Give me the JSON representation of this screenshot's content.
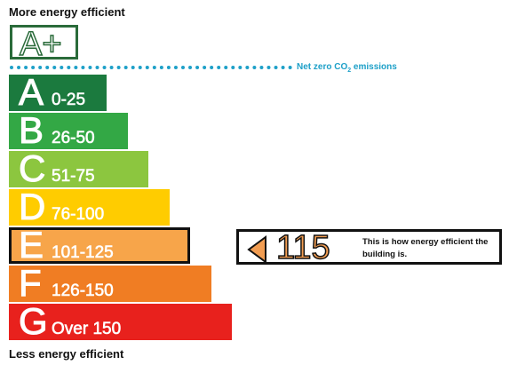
{
  "headings": {
    "top": "More energy efficient",
    "bottom": "Less energy efficient"
  },
  "aplus": {
    "label": "A+"
  },
  "net_zero": {
    "label_main": "Net zero CO",
    "label_sub": "2",
    "label_tail": " emissions",
    "color": "#1ea0c8"
  },
  "bands": [
    {
      "letter": "A",
      "range": "0-25",
      "color": "#1b7a3e"
    },
    {
      "letter": "B",
      "range": "26-50",
      "color": "#33a845"
    },
    {
      "letter": "C",
      "range": "51-75",
      "color": "#8cc63f"
    },
    {
      "letter": "D",
      "range": "76-100",
      "color": "#ffcc00"
    },
    {
      "letter": "E",
      "range": "101-125",
      "color": "#f7a54a"
    },
    {
      "letter": "F",
      "range": "126-150",
      "color": "#f07d23"
    },
    {
      "letter": "G",
      "range": "Over 150",
      "color": "#e8211d"
    }
  ],
  "current": {
    "band": "E",
    "score": "115",
    "caption": "This is how energy efficient the building is.",
    "color": "#f29d52"
  }
}
